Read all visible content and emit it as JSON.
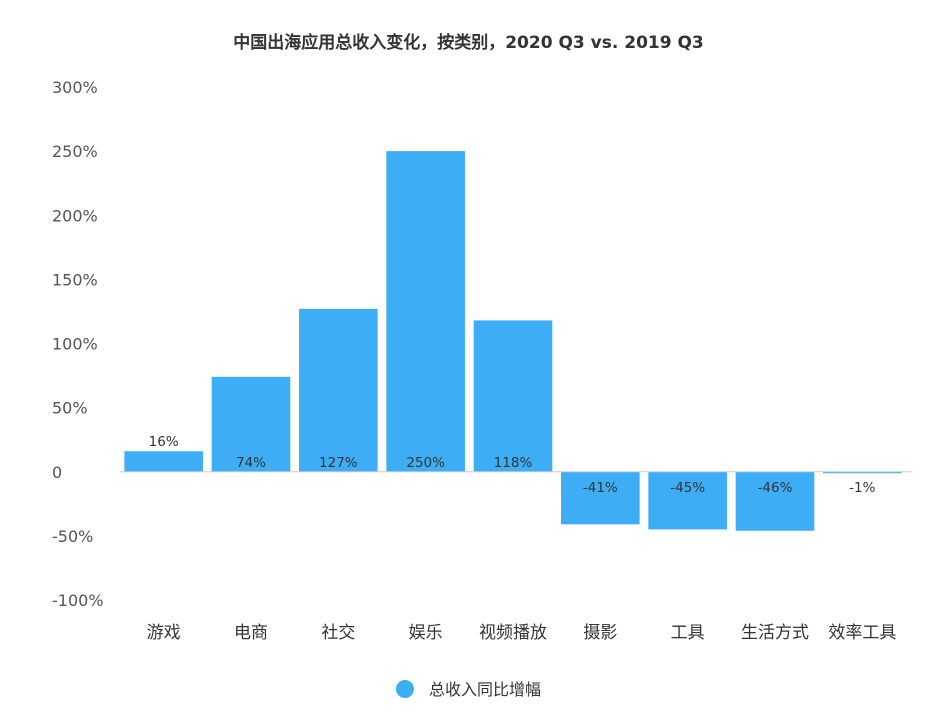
{
  "chart_data": {
    "type": "bar",
    "title": "中国出海应用总收入变化，按类别，2020 Q3 vs. 2019 Q3",
    "xlabel": "",
    "ylabel": "",
    "categories": [
      "游戏",
      "电商",
      "社交",
      "娱乐",
      "视频播放",
      "摄影",
      "工具",
      "生活方式",
      "效率工具"
    ],
    "series": [
      {
        "name": "总收入同比增幅",
        "values": [
          16,
          74,
          127,
          250,
          118,
          -41,
          -45,
          -46,
          -1
        ],
        "labels": [
          "16%",
          "74%",
          "127%",
          "250%",
          "118%",
          "-41%",
          "-45%",
          "-46%",
          "-1%"
        ]
      }
    ],
    "ylim": [
      -100,
      300
    ],
    "yticks": [
      300,
      250,
      200,
      150,
      100,
      50,
      0,
      -50,
      -100
    ],
    "ytick_labels": [
      "300%",
      "250%",
      "200%",
      "150%",
      "100%",
      "50%",
      "0",
      "-50%",
      "-100%"
    ],
    "grid": false,
    "legend_position": "bottom",
    "bar_color": "#3DAEF5",
    "axis_color": "#CCCCCC"
  }
}
